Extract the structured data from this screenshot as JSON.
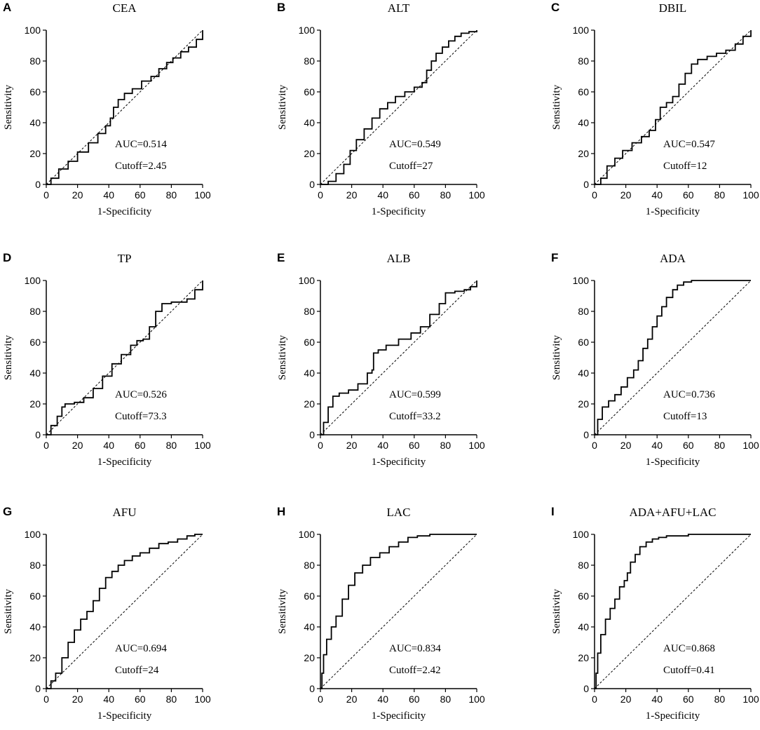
{
  "chart_data": [
    {
      "panel": "A",
      "type": "line",
      "title": "CEA",
      "xlabel": "1-Specificity",
      "ylabel": "Sensitivity",
      "xlim": [
        0,
        100
      ],
      "ylim": [
        0,
        100
      ],
      "xticks": [
        "0",
        "20",
        "40",
        "60",
        "80",
        "100"
      ],
      "yticks": [
        "0",
        "20",
        "40",
        "60",
        "80",
        "100"
      ],
      "auc_label": "AUC=0.514",
      "cutoff_label": "Cutoff=2.45",
      "series": [
        {
          "name": "ROC",
          "x": [
            0,
            3,
            8,
            14,
            20,
            27,
            33,
            38,
            41,
            43,
            46,
            50,
            55,
            61,
            67,
            72,
            77,
            81,
            86,
            91,
            96,
            100
          ],
          "y": [
            0,
            4,
            10,
            15,
            21,
            27,
            33,
            38,
            43,
            50,
            55,
            59,
            62,
            67,
            70,
            75,
            79,
            82,
            86,
            89,
            94,
            100
          ]
        },
        {
          "name": "reference",
          "x": [
            0,
            100
          ],
          "y": [
            0,
            100
          ]
        }
      ]
    },
    {
      "panel": "B",
      "type": "line",
      "title": "ALT",
      "xlabel": "1-Specificity",
      "ylabel": "Sensitivity",
      "xlim": [
        0,
        100
      ],
      "ylim": [
        0,
        100
      ],
      "xticks": [
        "0",
        "20",
        "40",
        "60",
        "80",
        "100"
      ],
      "yticks": [
        "0",
        "20",
        "40",
        "60",
        "80",
        "100"
      ],
      "auc_label": "AUC=0.549",
      "cutoff_label": "Cutoff=27",
      "series": [
        {
          "name": "ROC",
          "x": [
            0,
            5,
            10,
            15,
            19,
            23,
            28,
            33,
            38,
            43,
            48,
            54,
            60,
            65,
            68,
            71,
            74,
            78,
            82,
            86,
            90,
            95,
            100
          ],
          "y": [
            0,
            2,
            7,
            13,
            22,
            29,
            36,
            43,
            49,
            53,
            57,
            60,
            63,
            66,
            74,
            80,
            85,
            89,
            93,
            96,
            98,
            99,
            100
          ]
        },
        {
          "name": "reference",
          "x": [
            0,
            100
          ],
          "y": [
            0,
            100
          ]
        }
      ]
    },
    {
      "panel": "C",
      "type": "line",
      "title": "DBIL",
      "xlabel": "1-Specificity",
      "ylabel": "Sensitivity",
      "xlim": [
        0,
        100
      ],
      "ylim": [
        0,
        100
      ],
      "xticks": [
        "0",
        "20",
        "40",
        "60",
        "80",
        "100"
      ],
      "yticks": [
        "0",
        "20",
        "40",
        "60",
        "80",
        "100"
      ],
      "auc_label": "AUC=0.547",
      "cutoff_label": "Cutoff=12",
      "series": [
        {
          "name": "ROC",
          "x": [
            0,
            4,
            8,
            13,
            18,
            24,
            30,
            35,
            39,
            42,
            46,
            50,
            54,
            58,
            62,
            66,
            72,
            78,
            84,
            90,
            95,
            100
          ],
          "y": [
            0,
            4,
            12,
            17,
            22,
            27,
            31,
            35,
            42,
            50,
            53,
            57,
            65,
            72,
            78,
            81,
            83,
            85,
            87,
            91,
            96,
            100
          ]
        },
        {
          "name": "reference",
          "x": [
            0,
            100
          ],
          "y": [
            0,
            100
          ]
        }
      ]
    },
    {
      "panel": "D",
      "type": "line",
      "title": "TP",
      "xlabel": "1-Specificity",
      "ylabel": "Sensitivity",
      "xlim": [
        0,
        100
      ],
      "ylim": [
        0,
        100
      ],
      "xticks": [
        "0",
        "20",
        "40",
        "60",
        "80",
        "100"
      ],
      "yticks": [
        "0",
        "20",
        "40",
        "60",
        "80",
        "100"
      ],
      "auc_label": "AUC=0.526",
      "cutoff_label": "Cutoff=73.3",
      "series": [
        {
          "name": "ROC",
          "x": [
            0,
            3,
            7,
            10,
            12,
            18,
            24,
            30,
            36,
            42,
            48,
            54,
            58,
            62,
            66,
            70,
            74,
            80,
            86,
            90,
            95,
            100
          ],
          "y": [
            0,
            6,
            12,
            18,
            20,
            21,
            24,
            30,
            38,
            46,
            52,
            58,
            61,
            62,
            70,
            80,
            85,
            86,
            86,
            88,
            94,
            100
          ]
        },
        {
          "name": "reference",
          "x": [
            0,
            100
          ],
          "y": [
            0,
            100
          ]
        }
      ]
    },
    {
      "panel": "E",
      "type": "line",
      "title": "ALB",
      "xlabel": "1-Specificity",
      "ylabel": "Sensitivity",
      "xlim": [
        0,
        100
      ],
      "ylim": [
        0,
        100
      ],
      "xticks": [
        "0",
        "20",
        "40",
        "60",
        "80",
        "100"
      ],
      "yticks": [
        "0",
        "20",
        "40",
        "60",
        "80",
        "100"
      ],
      "auc_label": "AUC=0.599",
      "cutoff_label": "Cutoff=33.2",
      "series": [
        {
          "name": "ROC",
          "x": [
            0,
            2,
            5,
            8,
            12,
            18,
            24,
            30,
            33,
            34,
            37,
            42,
            50,
            58,
            64,
            70,
            76,
            80,
            86,
            92,
            96,
            100
          ],
          "y": [
            0,
            8,
            18,
            25,
            27,
            29,
            33,
            40,
            42,
            53,
            55,
            58,
            62,
            66,
            70,
            78,
            85,
            92,
            93,
            94,
            96,
            100
          ]
        },
        {
          "name": "reference",
          "x": [
            0,
            100
          ],
          "y": [
            0,
            100
          ]
        }
      ]
    },
    {
      "panel": "F",
      "type": "line",
      "title": "ADA",
      "xlabel": "1-Specificity",
      "ylabel": "Sensitivity",
      "xlim": [
        0,
        100
      ],
      "ylim": [
        0,
        100
      ],
      "xticks": [
        "0",
        "20",
        "40",
        "60",
        "80",
        "100"
      ],
      "yticks": [
        "0",
        "20",
        "40",
        "60",
        "80",
        "100"
      ],
      "auc_label": "AUC=0.736",
      "cutoff_label": "Cutoff=13",
      "series": [
        {
          "name": "ROC",
          "x": [
            0,
            2,
            5,
            9,
            13,
            17,
            21,
            25,
            28,
            31,
            34,
            37,
            40,
            43,
            46,
            50,
            53,
            57,
            62,
            70,
            80,
            100
          ],
          "y": [
            0,
            10,
            18,
            22,
            26,
            31,
            37,
            42,
            48,
            56,
            62,
            70,
            77,
            83,
            89,
            94,
            97,
            99,
            100,
            100,
            100,
            100
          ]
        },
        {
          "name": "reference",
          "x": [
            0,
            100
          ],
          "y": [
            0,
            100
          ]
        }
      ]
    },
    {
      "panel": "G",
      "type": "line",
      "title": "AFU",
      "xlabel": "1-Specificity",
      "ylabel": "Sensitivity",
      "xlim": [
        0,
        100
      ],
      "ylim": [
        0,
        100
      ],
      "xticks": [
        "0",
        "20",
        "40",
        "60",
        "80",
        "100"
      ],
      "yticks": [
        "0",
        "20",
        "40",
        "60",
        "80",
        "100"
      ],
      "auc_label": "AUC=0.694",
      "cutoff_label": "Cutoff=24",
      "series": [
        {
          "name": "ROC",
          "x": [
            0,
            3,
            6,
            10,
            14,
            18,
            22,
            26,
            30,
            34,
            38,
            42,
            46,
            50,
            55,
            60,
            66,
            72,
            78,
            84,
            90,
            95,
            100
          ],
          "y": [
            0,
            5,
            10,
            20,
            30,
            38,
            45,
            50,
            57,
            65,
            72,
            76,
            80,
            83,
            86,
            88,
            91,
            94,
            95,
            97,
            99,
            100,
            100
          ]
        },
        {
          "name": "reference",
          "x": [
            0,
            100
          ],
          "y": [
            0,
            100
          ]
        }
      ]
    },
    {
      "panel": "H",
      "type": "line",
      "title": "LAC",
      "xlabel": "1-Specificity",
      "ylabel": "Sensitivity",
      "xlim": [
        0,
        100
      ],
      "ylim": [
        0,
        100
      ],
      "xticks": [
        "0",
        "20",
        "40",
        "60",
        "80",
        "100"
      ],
      "yticks": [
        "0",
        "20",
        "40",
        "60",
        "80",
        "100"
      ],
      "auc_label": "AUC=0.834",
      "cutoff_label": "Cutoff=2.42",
      "series": [
        {
          "name": "ROC",
          "x": [
            0,
            1,
            2,
            4,
            7,
            10,
            14,
            18,
            22,
            27,
            32,
            38,
            44,
            50,
            56,
            62,
            70,
            80,
            90,
            100
          ],
          "y": [
            0,
            10,
            22,
            32,
            40,
            47,
            58,
            67,
            75,
            80,
            85,
            88,
            92,
            95,
            98,
            99,
            100,
            100,
            100,
            100
          ]
        },
        {
          "name": "reference",
          "x": [
            0,
            100
          ],
          "y": [
            0,
            100
          ]
        }
      ]
    },
    {
      "panel": "I",
      "type": "line",
      "title": "ADA+AFU+LAC",
      "xlabel": "1-Specificity",
      "ylabel": "Sensitivity",
      "xlim": [
        0,
        100
      ],
      "ylim": [
        0,
        100
      ],
      "xticks": [
        "0",
        "20",
        "40",
        "60",
        "80",
        "100"
      ],
      "yticks": [
        "0",
        "20",
        "40",
        "60",
        "80",
        "100"
      ],
      "auc_label": "AUC=0.868",
      "cutoff_label": "Cutoff=0.41",
      "series": [
        {
          "name": "ROC",
          "x": [
            0,
            1,
            2,
            4,
            7,
            10,
            13,
            16,
            19,
            21,
            23,
            26,
            29,
            33,
            37,
            41,
            46,
            52,
            60,
            70,
            80,
            90,
            100
          ],
          "y": [
            0,
            10,
            23,
            35,
            45,
            52,
            58,
            66,
            70,
            75,
            82,
            87,
            92,
            95,
            97,
            98,
            99,
            99,
            100,
            100,
            100,
            100,
            100
          ]
        },
        {
          "name": "reference",
          "x": [
            0,
            100
          ],
          "y": [
            0,
            100
          ]
        }
      ]
    }
  ]
}
